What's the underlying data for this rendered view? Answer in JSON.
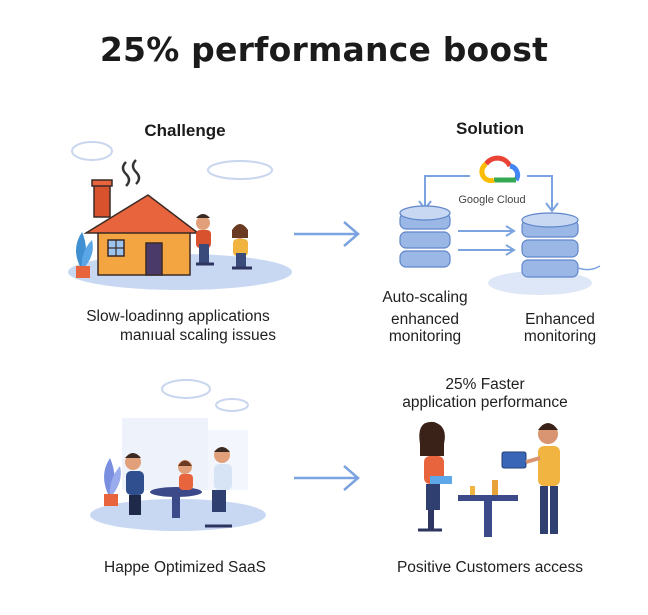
{
  "title": "25% performance boost",
  "challenge": {
    "heading": "Challenge",
    "caption_line1": "Slow-loadinng applications",
    "caption_line2": "manıual scaling issues"
  },
  "solution": {
    "heading": "Solution",
    "cloud_label": "Google Cloud",
    "left_label_line1": "Auto-scaling",
    "left_label_line2": "enhanced",
    "left_label_line3": "monitoring",
    "right_label_line1": "Enhanced",
    "right_label_line2": "monitoring"
  },
  "results": {
    "top_line1": "25% Faster",
    "top_line2": "application performance",
    "bottom_left_caption": "Happe Optimized SaaS",
    "bottom_right_caption": "Positive Customers access"
  },
  "colors": {
    "accent_blue": "#7ba3e0",
    "house_roof": "#e8643c",
    "house_wall": "#f3a541",
    "server_blue": "#9bb7e6"
  }
}
